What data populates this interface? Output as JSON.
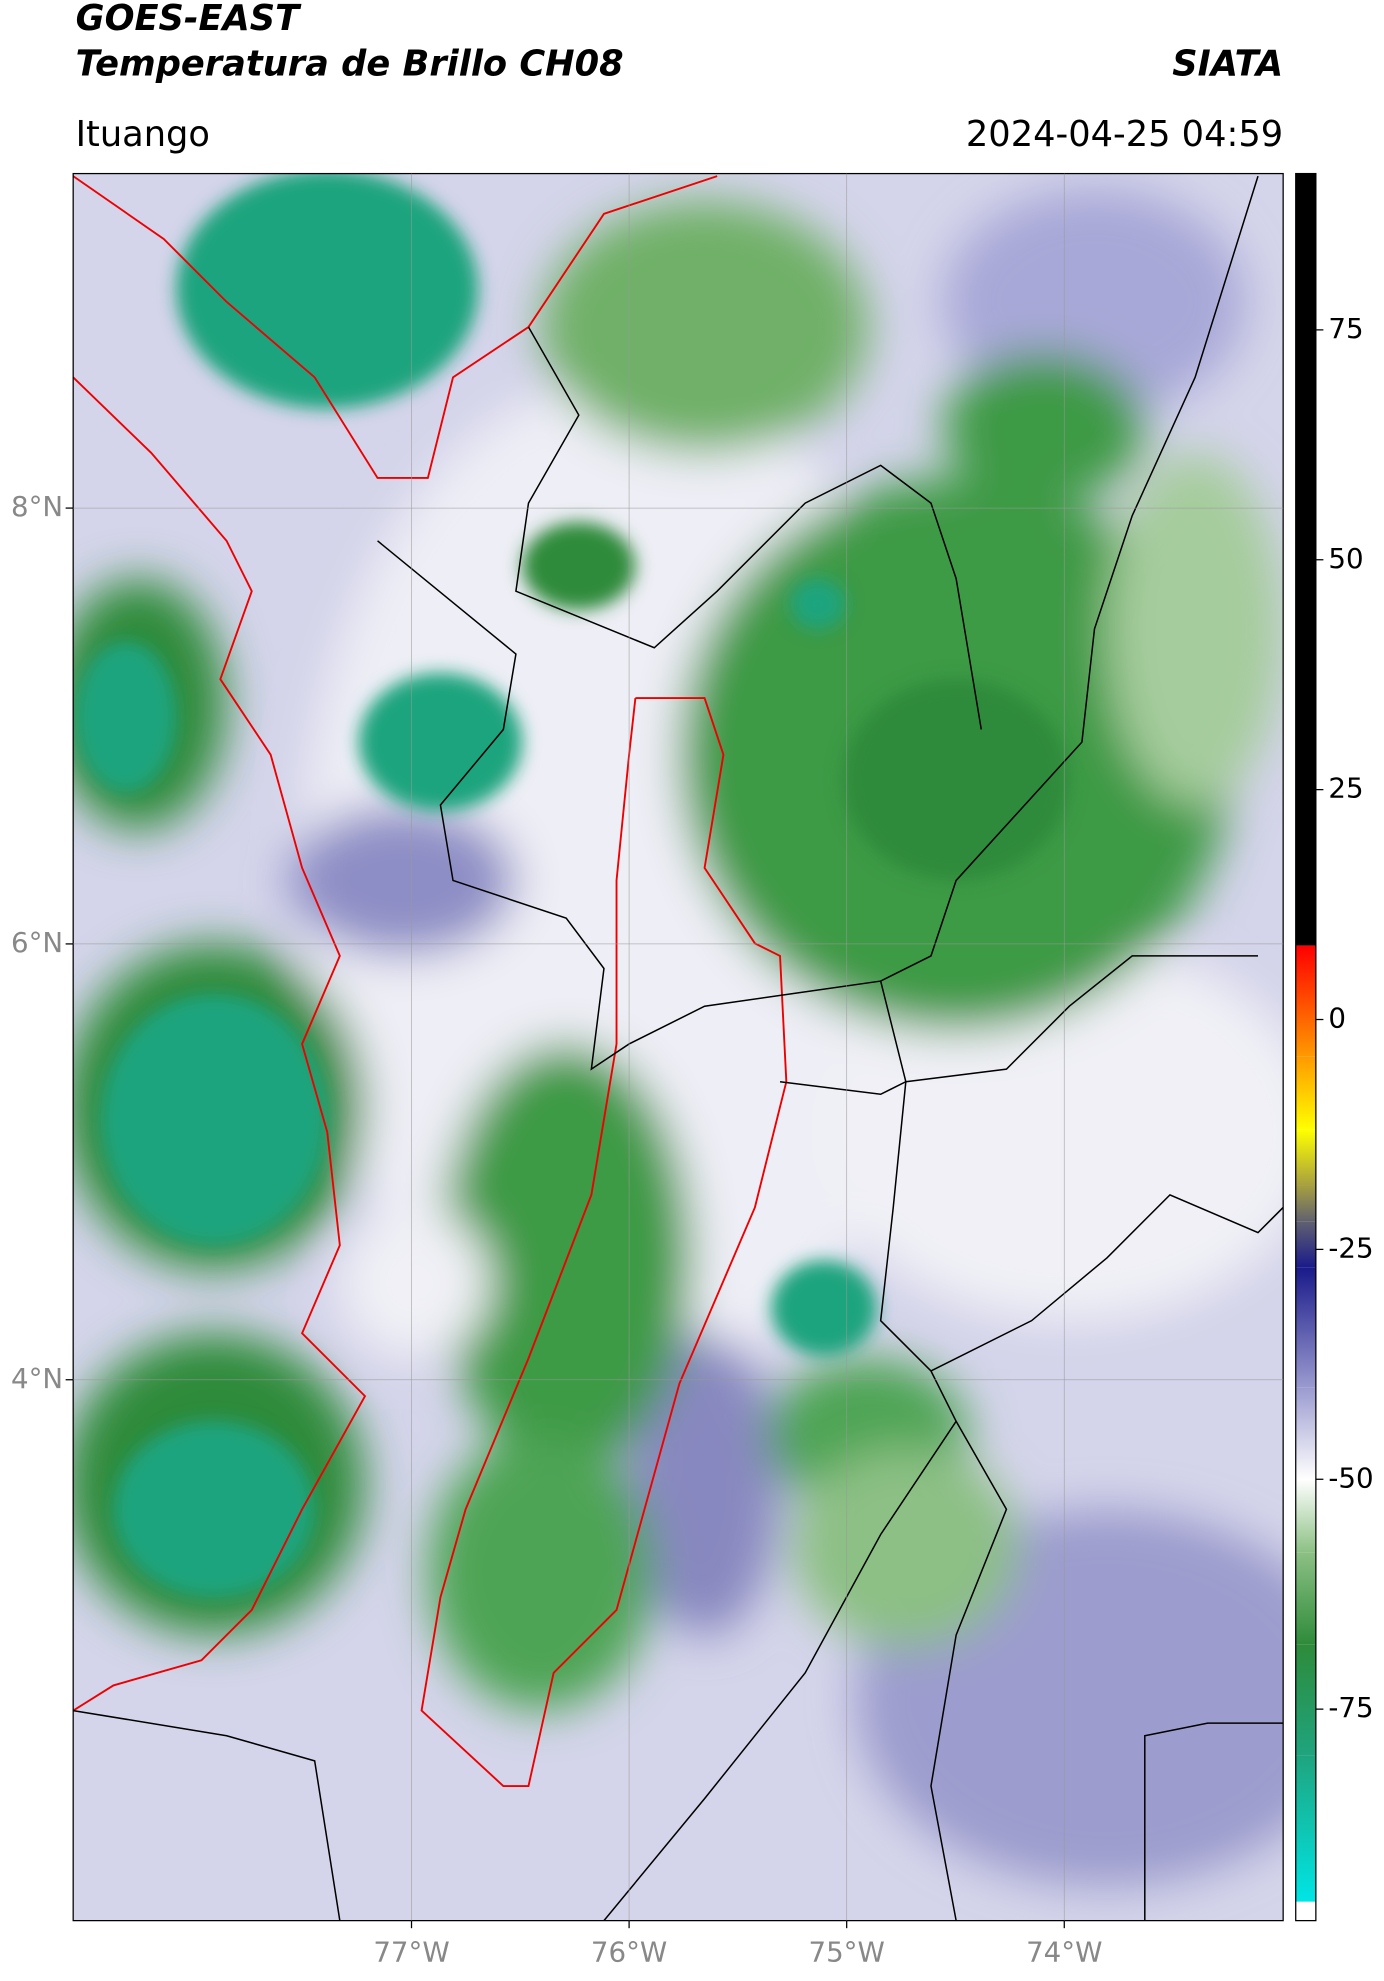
{
  "header": {
    "title_1": "GOES-EAST",
    "title_2": "Temperatura de Brillo CH08",
    "source": "SIATA",
    "location": "Ituango",
    "datetime": "2024-04-25 04:59"
  },
  "map": {
    "lonlim": [
      -78.555,
      -72.994
    ],
    "latlim": [
      1.518,
      9.535
    ],
    "lon_ticks": [
      {
        "value": -77,
        "label": "77°W"
      },
      {
        "value": -76,
        "label": "76°W"
      },
      {
        "value": -75,
        "label": "75°W"
      },
      {
        "value": -74,
        "label": "74°W"
      }
    ],
    "lat_ticks": [
      {
        "value": 8,
        "label": "8°N"
      },
      {
        "value": 6,
        "label": "6°N"
      },
      {
        "value": 4,
        "label": "4°N"
      }
    ],
    "grid": true
  },
  "colorbar": {
    "range": [
      -98,
      92
    ],
    "ticks": [
      75,
      50,
      25,
      0,
      -25,
      -50,
      -75
    ],
    "stops": [
      {
        "value": -98,
        "color": "#ffffff"
      },
      {
        "value": -96,
        "color": "#ffffff"
      },
      {
        "value": -95.9,
        "color": "#00e5e5"
      },
      {
        "value": -80,
        "color": "#1fa47e"
      },
      {
        "value": -68,
        "color": "#2e8b3a"
      },
      {
        "value": -58,
        "color": "#8cc084"
      },
      {
        "value": -50,
        "color": "#ffffff"
      },
      {
        "value": -40,
        "color": "#9a9ad0"
      },
      {
        "value": -27,
        "color": "#1a1a8a"
      },
      {
        "value": -22,
        "color": "#606070"
      },
      {
        "value": -18,
        "color": "#a8a040"
      },
      {
        "value": -12,
        "color": "#ffff00"
      },
      {
        "value": -4,
        "color": "#ff9900"
      },
      {
        "value": 8,
        "color": "#ff0000"
      },
      {
        "value": 8.1,
        "color": "#000000"
      },
      {
        "value": 92,
        "color": "#000000"
      }
    ]
  }
}
